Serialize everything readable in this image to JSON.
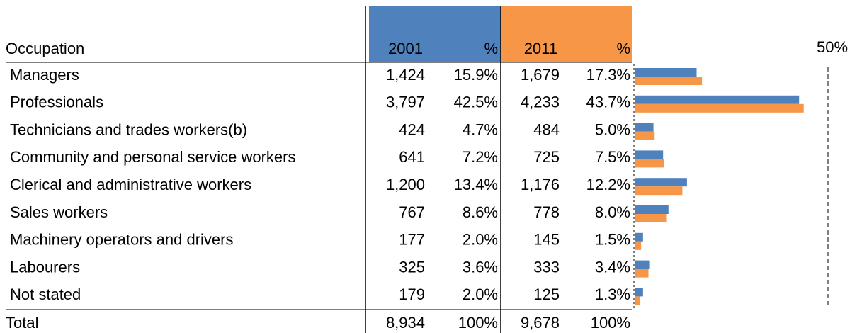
{
  "chart_data": {
    "type": "bar",
    "category_header": "Occupation",
    "percent_header": "%",
    "categories": [
      "Managers",
      "Professionals",
      "Technicians and trades workers(b)",
      "Community and personal service workers",
      "Clerical and administrative workers",
      "Sales workers",
      "Machinery operators and drivers",
      "Labourers",
      "Not stated"
    ],
    "series": [
      {
        "name": "2001",
        "color": "#4f81bd",
        "counts": [
          "1,424",
          "3,797",
          "424",
          "641",
          "1,200",
          "767",
          "177",
          "325",
          "179"
        ],
        "values": [
          15.9,
          42.5,
          4.7,
          7.2,
          13.4,
          8.6,
          2.0,
          3.6,
          2.0
        ],
        "value_labels": [
          "15.9%",
          "42.5%",
          "4.7%",
          "7.2%",
          "13.4%",
          "8.6%",
          "2.0%",
          "3.6%",
          "2.0%"
        ],
        "total_count": "8,934",
        "total_percent": "100%"
      },
      {
        "name": "2011",
        "color": "#f79646",
        "counts": [
          "1,679",
          "4,233",
          "484",
          "725",
          "1,176",
          "778",
          "145",
          "333",
          "125"
        ],
        "values": [
          17.3,
          43.7,
          5.0,
          7.5,
          12.2,
          8.0,
          1.5,
          3.4,
          1.3
        ],
        "value_labels": [
          "17.3%",
          "43.7%",
          "5.0%",
          "7.5%",
          "12.2%",
          "8.0%",
          "1.5%",
          "3.4%",
          "1.3%"
        ],
        "total_count": "9,678",
        "total_percent": "100%"
      }
    ],
    "total_label": "Total",
    "xlim": [
      0,
      50
    ],
    "xticks": [
      {
        "value": 50,
        "label": "50%"
      }
    ]
  }
}
